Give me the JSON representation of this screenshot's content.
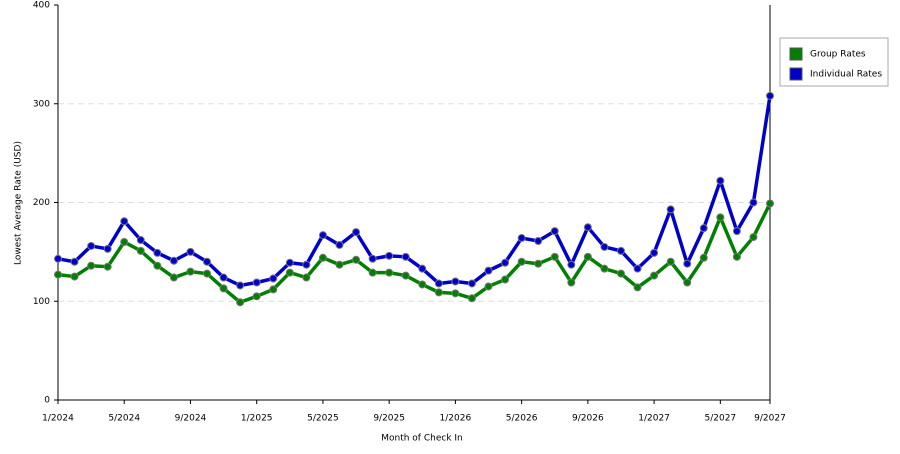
{
  "chart_data": {
    "type": "line",
    "x_label": "Month of Check In",
    "y_label": "Lowest Average Rate (USD)",
    "categories": [
      "1/2024",
      null,
      null,
      null,
      "5/2024",
      null,
      null,
      null,
      "9/2024",
      null,
      null,
      null,
      "1/2025",
      null,
      null,
      null,
      "5/2025",
      null,
      null,
      null,
      "9/2025",
      null,
      null,
      null,
      "1/2026",
      null,
      null,
      null,
      "5/2026",
      null,
      null,
      null,
      "9/2026",
      null,
      null,
      null,
      "1/2027",
      null,
      null,
      null,
      "5/2027",
      null,
      null,
      "9/2027"
    ],
    "series": [
      {
        "name": "Group Rates",
        "color": "#008000",
        "values": [
          127,
          125,
          136,
          135,
          160,
          151,
          136,
          124,
          130,
          128,
          113,
          99,
          105,
          112,
          129,
          124,
          144,
          137,
          142,
          129,
          129,
          126,
          117,
          109,
          108,
          103,
          115,
          122,
          140,
          138,
          145,
          119,
          145,
          133,
          128,
          114,
          126,
          140,
          119,
          144,
          185,
          145,
          165,
          199
        ]
      },
      {
        "name": "Individual Rates",
        "color": "#0000cc",
        "values": [
          143,
          140,
          156,
          153,
          181,
          162,
          149,
          141,
          150,
          140,
          124,
          116,
          119,
          123,
          139,
          137,
          167,
          157,
          170,
          143,
          146,
          145,
          133,
          118,
          120,
          118,
          131,
          139,
          164,
          161,
          171,
          137,
          175,
          155,
          151,
          133,
          149,
          193,
          138,
          174,
          222,
          171,
          200,
          308
        ]
      }
    ],
    "ylim": [
      0,
      400
    ],
    "yticks": [
      0,
      100,
      200,
      300,
      400
    ],
    "grid": true,
    "legend": "right"
  }
}
